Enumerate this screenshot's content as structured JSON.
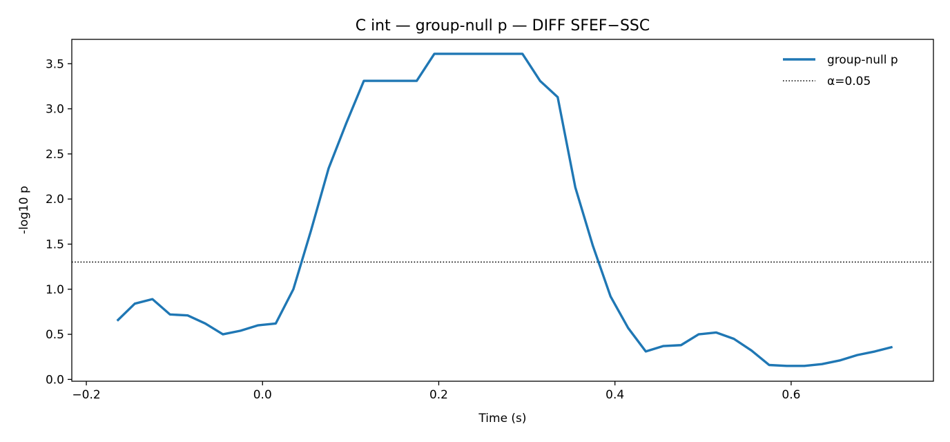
{
  "chart_data": {
    "type": "line",
    "title": "C int — group-null p — DIFF SFEF−SSC",
    "xlabel": "Time (s)",
    "ylabel": "-log10 p",
    "xlim": [
      -0.2165,
      0.7615
    ],
    "ylim": [
      -0.02,
      3.77
    ],
    "xticks": [
      -0.2,
      0.0,
      0.2,
      0.4,
      0.6
    ],
    "xtick_labels": [
      "−0.2",
      "0.0",
      "0.2",
      "0.4",
      "0.6"
    ],
    "yticks": [
      0.0,
      0.5,
      1.0,
      1.5,
      2.0,
      2.5,
      3.0,
      3.5
    ],
    "ytick_labels": [
      "0.0",
      "0.5",
      "1.0",
      "1.5",
      "2.0",
      "2.5",
      "3.0",
      "3.5"
    ],
    "grid": false,
    "legend_position": "top-right",
    "series": [
      {
        "name": "group-null p",
        "color": "#1f77b4",
        "style": "solid",
        "x": [
          -0.165,
          -0.145,
          -0.125,
          -0.105,
          -0.085,
          -0.065,
          -0.045,
          -0.025,
          -0.005,
          0.015,
          0.035,
          0.055,
          0.075,
          0.095,
          0.115,
          0.135,
          0.155,
          0.175,
          0.195,
          0.215,
          0.235,
          0.255,
          0.275,
          0.295,
          0.315,
          0.335,
          0.355,
          0.375,
          0.395,
          0.415,
          0.435,
          0.455,
          0.475,
          0.495,
          0.515,
          0.535,
          0.555,
          0.575,
          0.595,
          0.615,
          0.635,
          0.655,
          0.675,
          0.695,
          0.715
        ],
        "values": [
          0.65,
          0.84,
          0.89,
          0.72,
          0.71,
          0.62,
          0.5,
          0.54,
          0.6,
          0.62,
          1.0,
          1.65,
          2.34,
          2.84,
          3.31,
          3.31,
          3.31,
          3.31,
          3.61,
          3.61,
          3.61,
          3.61,
          3.61,
          3.61,
          3.31,
          3.13,
          2.13,
          1.48,
          0.92,
          0.57,
          0.31,
          0.37,
          0.38,
          0.5,
          0.52,
          0.45,
          0.32,
          0.16,
          0.15,
          0.15,
          0.17,
          0.21,
          0.27,
          0.31,
          0.36
        ]
      }
    ],
    "reference_lines": [
      {
        "name": "α=0.05",
        "orientation": "horizontal",
        "value": 1.30103,
        "color": "#000000",
        "style": "dotted"
      }
    ]
  }
}
